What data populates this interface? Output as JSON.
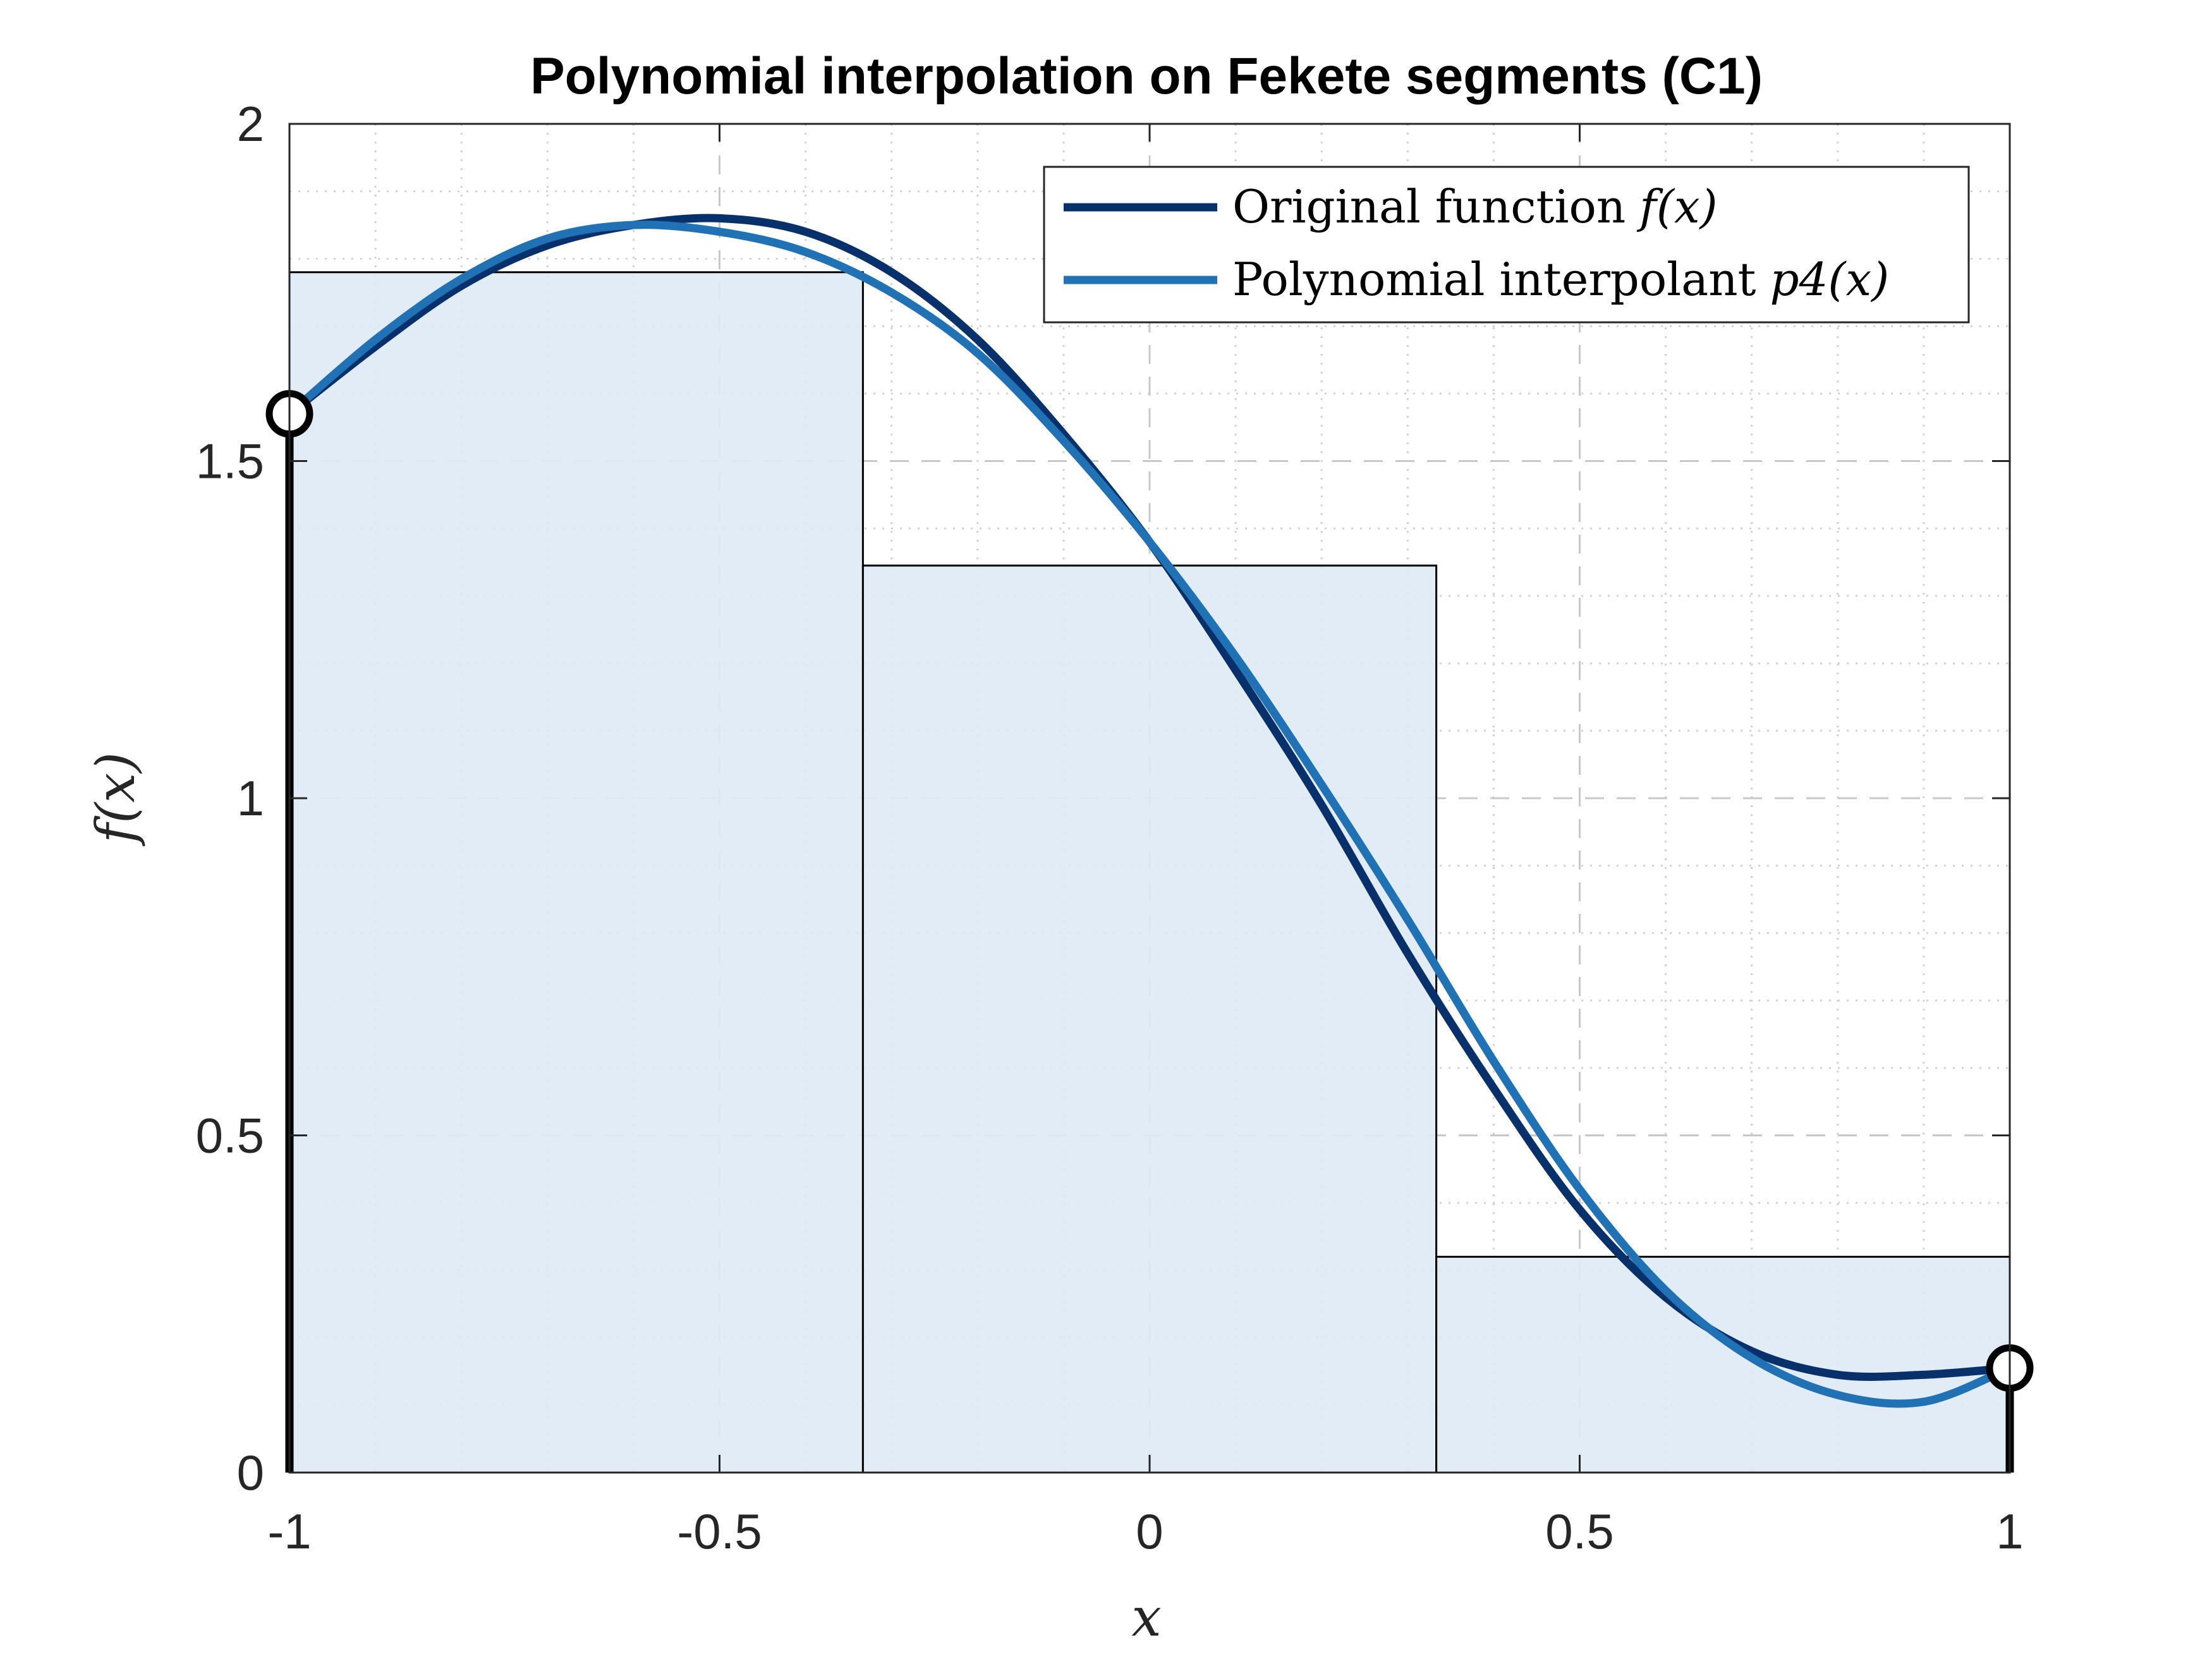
{
  "chart_data": {
    "type": "line",
    "title": "Polynomial interpolation on Fekete segments (C1)",
    "xlabel": "x",
    "ylabel": "f(x)",
    "xlim": [
      -1,
      1
    ],
    "ylim": [
      0,
      2
    ],
    "x_ticks": [
      -1,
      -0.5,
      0,
      0.5,
      1
    ],
    "x_tick_labels": [
      "-1",
      "-0.5",
      "0",
      "0.5",
      "1"
    ],
    "y_ticks": [
      0,
      0.5,
      1,
      1.5,
      2
    ],
    "y_tick_labels": [
      "0",
      "0.5",
      "1",
      "1.5",
      "2"
    ],
    "grid": true,
    "minor_grid": true,
    "legend_position": "top-right",
    "segments": [
      {
        "x0": -1,
        "x1": -0.3333,
        "value": 1.78
      },
      {
        "x0": -0.3333,
        "x1": 0.3333,
        "value": 1.345
      },
      {
        "x0": 0.3333,
        "x1": 1,
        "value": 0.32
      }
    ],
    "series": [
      {
        "name": "Original function f(x)",
        "legend_label": "Original function",
        "legend_math": "f(x)",
        "color": "#08306b",
        "x": [
          -1,
          -0.9,
          -0.8,
          -0.7,
          -0.6,
          -0.5,
          -0.4,
          -0.3,
          -0.2,
          -0.1,
          0,
          0.1,
          0.2,
          0.3,
          0.4,
          0.5,
          0.6,
          0.7,
          0.8,
          0.9,
          1
        ],
        "y": [
          1.57,
          1.67,
          1.76,
          1.82,
          1.85,
          1.86,
          1.84,
          1.78,
          1.68,
          1.54,
          1.38,
          1.19,
          0.99,
          0.77,
          0.57,
          0.39,
          0.26,
          0.18,
          0.145,
          0.145,
          0.155
        ]
      },
      {
        "name": "Polynomial interpolant p4(x)",
        "legend_label": "Polynomial interpolant",
        "legend_math": "p4(x)",
        "color": "#2171b5",
        "x": [
          -1,
          -0.9,
          -0.8,
          -0.7,
          -0.6,
          -0.5,
          -0.4,
          -0.3,
          -0.2,
          -0.1,
          0,
          0.1,
          0.2,
          0.3,
          0.4,
          0.5,
          0.6,
          0.7,
          0.8,
          0.9,
          1
        ],
        "y": [
          1.57,
          1.68,
          1.77,
          1.83,
          1.85,
          1.84,
          1.81,
          1.75,
          1.66,
          1.53,
          1.38,
          1.21,
          1.02,
          0.82,
          0.61,
          0.42,
          0.27,
          0.17,
          0.115,
          0.105,
          0.155
        ]
      }
    ],
    "endpoints": [
      {
        "x": -1,
        "y": 1.57
      },
      {
        "x": 1,
        "y": 0.155
      }
    ],
    "colors": {
      "segment_fill": "#deeaf5",
      "segment_edge": "#000000",
      "stem": "#000000",
      "grid_major": "#c8c8c8",
      "grid_minor": "#d2d2d2"
    }
  }
}
